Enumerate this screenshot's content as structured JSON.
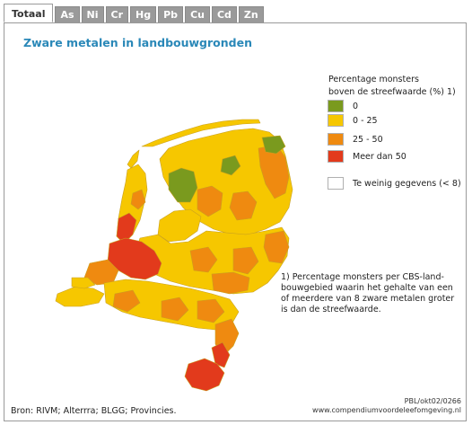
{
  "tabs": [
    {
      "label": "Totaal",
      "active": true
    },
    {
      "label": "As",
      "active": false
    },
    {
      "label": "Ni",
      "active": false
    },
    {
      "label": "Cr",
      "active": false
    },
    {
      "label": "Hg",
      "active": false
    },
    {
      "label": "Pb",
      "active": false
    },
    {
      "label": "Cu",
      "active": false
    },
    {
      "label": "Cd",
      "active": false
    },
    {
      "label": "Zn",
      "active": false
    }
  ],
  "title": "Zware metalen in landbouwgronden",
  "legend": {
    "title_line1": "Percentage monsters",
    "title_line2": "boven de streefwaarde (%) 1)",
    "items": [
      {
        "label": "0",
        "color": "#7a9a1e"
      },
      {
        "label": "0 - 25",
        "color": "#f6c700"
      },
      {
        "label": "25 - 50",
        "color": "#ef8a10"
      },
      {
        "label": "Meer dan 50",
        "color": "#e23a1c"
      },
      {
        "label": "Te weinig gegevens (< 8)",
        "color": "#ffffff"
      }
    ]
  },
  "note": "1) Percentage monsters per CBS-land-bouwgebied waarin het gehalte van een of meerdere van 8 zware metalen groter is dan de streefwaarde.",
  "source": "Bron: RIVM; Alterrra; BLGG; Provincies.",
  "credit_line1": "PBL/okt02/0266",
  "credit_line2": "www.compendiumvoordeleefomgeving.nl"
}
